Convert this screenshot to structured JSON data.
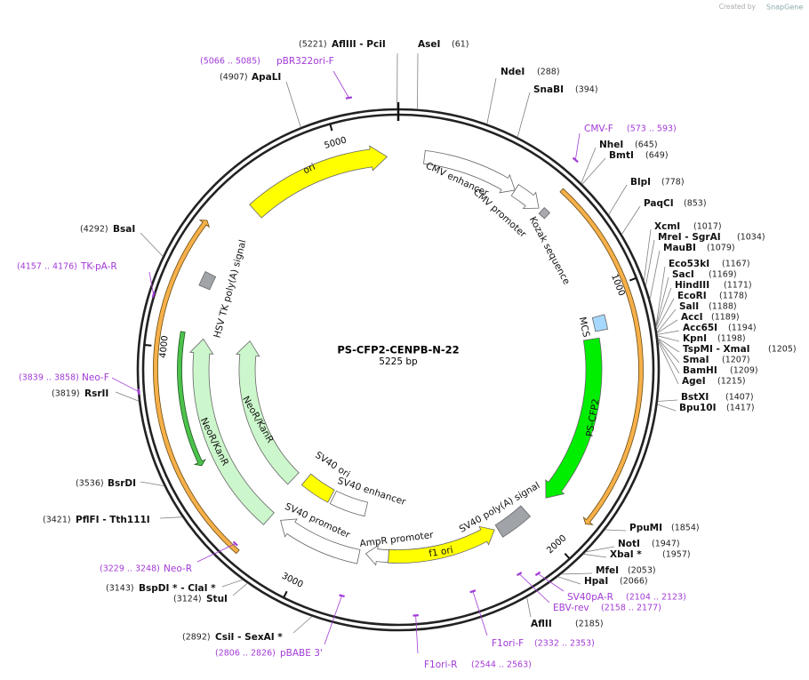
{
  "watermark": {
    "prefix": "Created by",
    "brand": "SnapGene"
  },
  "map": {
    "name": "PS-CFP2-CENPB-N-22",
    "length": 5225,
    "length_label": "5225 bp",
    "ticks": [
      1000,
      2000,
      3000,
      4000,
      5000
    ],
    "features": [
      {
        "label": "ori"
      },
      {
        "label": "CMV enhancer"
      },
      {
        "label": "CMV promoter"
      },
      {
        "label": "Kozak sequence"
      },
      {
        "label": "MCS"
      },
      {
        "label": "PS-CFP2"
      },
      {
        "label": "SV40 poly(A) signal"
      },
      {
        "label": "f1 ori"
      },
      {
        "label": "AmpR promoter"
      },
      {
        "label": "SV40 promoter"
      },
      {
        "label": "SV40 ori"
      },
      {
        "label": "SV40 enhancer"
      },
      {
        "label": "NeoR/KanR"
      },
      {
        "label": "NeoR/KanR"
      },
      {
        "label": "HSV TK poly(A) signal"
      }
    ],
    "enzymes": [
      {
        "name": "AseI",
        "position": 61,
        "label": "(61)"
      },
      {
        "name": "NdeI",
        "position": 288,
        "label": "(288)"
      },
      {
        "name": "SnaBI",
        "position": 394,
        "label": "(394)"
      },
      {
        "name": "NheI",
        "position": 645,
        "label": "(645)"
      },
      {
        "name": "BmtI",
        "position": 649,
        "label": "(649)"
      },
      {
        "name": "BlpI",
        "position": 778,
        "label": "(778)"
      },
      {
        "name": "PaqCI",
        "position": 853,
        "label": "(853)"
      },
      {
        "name": "XcmI",
        "position": 1017,
        "label": "(1017)"
      },
      {
        "name": "MreI - SgrAI",
        "position": 1034,
        "label": "(1034)"
      },
      {
        "name": "MauBI",
        "position": 1079,
        "label": "(1079)"
      },
      {
        "name": "Eco53kI",
        "position": 1167,
        "label": "(1167)"
      },
      {
        "name": "SacI",
        "position": 1169,
        "label": "(1169)"
      },
      {
        "name": "HindIII",
        "position": 1171,
        "label": "(1171)"
      },
      {
        "name": "EcoRI",
        "position": 1178,
        "label": "(1178)"
      },
      {
        "name": "SalI",
        "position": 1188,
        "label": "(1188)"
      },
      {
        "name": "AccI",
        "position": 1189,
        "label": "(1189)"
      },
      {
        "name": "Acc65I",
        "position": 1194,
        "label": "(1194)"
      },
      {
        "name": "KpnI",
        "position": 1198,
        "label": "(1198)"
      },
      {
        "name": "TspMI - XmaI",
        "position": 1205,
        "label": "(1205)"
      },
      {
        "name": "SmaI",
        "position": 1207,
        "label": "(1207)"
      },
      {
        "name": "BamHI",
        "position": 1209,
        "label": "(1209)"
      },
      {
        "name": "AgeI",
        "position": 1215,
        "label": "(1215)"
      },
      {
        "name": "BstXI",
        "position": 1407,
        "label": "(1407)"
      },
      {
        "name": "Bpu10I",
        "position": 1417,
        "label": "(1417)"
      },
      {
        "name": "PpuMI",
        "position": 1854,
        "label": "(1854)"
      },
      {
        "name": "NotI",
        "position": 1947,
        "label": "(1947)"
      },
      {
        "name": "XbaI *",
        "position": 1957,
        "label": "(1957)"
      },
      {
        "name": "MfeI",
        "position": 2053,
        "label": "(2053)"
      },
      {
        "name": "HpaI",
        "position": 2066,
        "label": "(2066)"
      },
      {
        "name": "AflII",
        "position": 2185,
        "label": "(2185)"
      },
      {
        "name": "CsiI - SexAI *",
        "position": 2892,
        "label": "(2892)"
      },
      {
        "name": "StuI",
        "position": 3124,
        "label": "(3124)"
      },
      {
        "name": "BspDI * - ClaI *",
        "position": 3143,
        "label": "(3143)"
      },
      {
        "name": "PflFI - Tth111I",
        "position": 3421,
        "label": "(3421)"
      },
      {
        "name": "BsrDI",
        "position": 3536,
        "label": "(3536)"
      },
      {
        "name": "RsrII",
        "position": 3819,
        "label": "(3819)"
      },
      {
        "name": "BsaI",
        "position": 4292,
        "label": "(4292)"
      },
      {
        "name": "ApaLI",
        "position": 4907,
        "label": "(4907)"
      },
      {
        "name": "AflIII - PciI",
        "position": 5221,
        "label": "(5221)"
      }
    ],
    "primers": [
      {
        "name": "CMV-F",
        "start": 573,
        "end": 593,
        "label": "(573 .. 593)"
      },
      {
        "name": "SV40pA-R",
        "start": 2104,
        "end": 2123,
        "label": "(2104 .. 2123)"
      },
      {
        "name": "EBV-rev",
        "start": 2158,
        "end": 2177,
        "label": "(2158 .. 2177)"
      },
      {
        "name": "F1ori-F",
        "start": 2332,
        "end": 2353,
        "label": "(2332 .. 2353)"
      },
      {
        "name": "F1ori-R",
        "start": 2544,
        "end": 2563,
        "label": "(2544 .. 2563)"
      },
      {
        "name": "pBABE 3'",
        "start": 2806,
        "end": 2826,
        "label": "(2806 .. 2826)"
      },
      {
        "name": "Neo-R",
        "start": 3229,
        "end": 3248,
        "label": "(3229 .. 3248)"
      },
      {
        "name": "Neo-F",
        "start": 3839,
        "end": 3858,
        "label": "(3839 .. 3858)"
      },
      {
        "name": "TK-pA-R",
        "start": 4157,
        "end": 4176,
        "label": "(4157 .. 4176)"
      },
      {
        "name": "pBR322ori-F",
        "start": 5066,
        "end": 5085,
        "label": "(5066 .. 5085)"
      }
    ]
  }
}
